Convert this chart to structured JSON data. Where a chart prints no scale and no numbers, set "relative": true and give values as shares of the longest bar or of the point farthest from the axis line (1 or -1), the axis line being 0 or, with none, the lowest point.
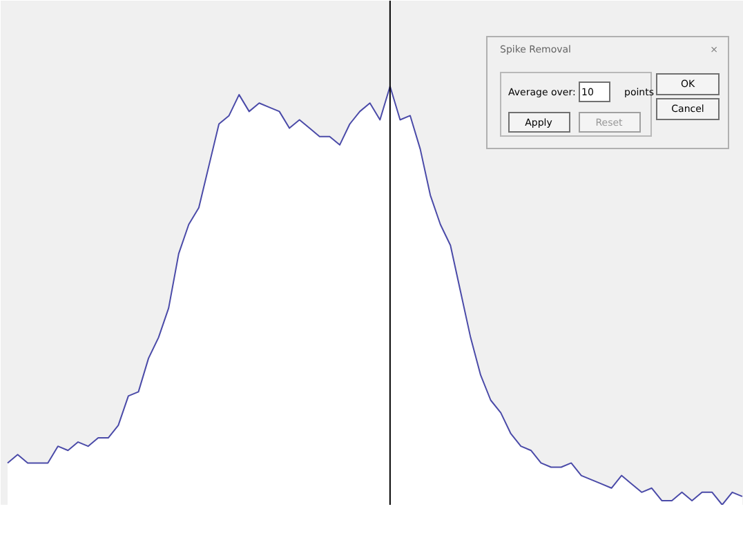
{
  "chart_data": {
    "type": "area",
    "relative": true,
    "categories": [
      null,
      null,
      null,
      null,
      null,
      null,
      null,
      null,
      null,
      null,
      null,
      null,
      null,
      null,
      null,
      null,
      null,
      null,
      null,
      null,
      null,
      null,
      null,
      null,
      null,
      null,
      null,
      null,
      null,
      null,
      null,
      null,
      null,
      null,
      null,
      null,
      null,
      null,
      null,
      null,
      null,
      null,
      null,
      null,
      null,
      null,
      null,
      null,
      null,
      null,
      null,
      null,
      null,
      null,
      null,
      null,
      null,
      null,
      null,
      null,
      null,
      null,
      null,
      null,
      null,
      null,
      null,
      null,
      null,
      null,
      null,
      null,
      null,
      null
    ],
    "series": [
      {
        "color": "#4a4aa8",
        "values": [
          0.1,
          0.12,
          0.1,
          0.1,
          0.1,
          0.14,
          0.13,
          0.15,
          0.14,
          0.16,
          0.16,
          0.19,
          0.26,
          0.27,
          0.35,
          0.4,
          0.47,
          0.6,
          0.67,
          0.71,
          0.81,
          0.91,
          0.93,
          0.98,
          0.94,
          0.96,
          0.95,
          0.94,
          0.9,
          0.92,
          0.9,
          0.88,
          0.88,
          0.86,
          0.91,
          0.94,
          0.96,
          0.92,
          1.0,
          0.92,
          0.93,
          0.85,
          0.74,
          0.67,
          0.62,
          0.51,
          0.4,
          0.31,
          0.25,
          0.22,
          0.17,
          0.14,
          0.13,
          0.1,
          0.09,
          0.09,
          0.1,
          0.07,
          0.06,
          0.05,
          0.04,
          0.07,
          0.05,
          0.03,
          0.04,
          0.01,
          0.01,
          0.03,
          0.01,
          0.03,
          0.03,
          0,
          0.03,
          0.02
        ]
      }
    ],
    "annotations": [
      "Spike Removal",
      "Average over:",
      "10",
      "points",
      "Apply",
      "Reset",
      "OK",
      "Cancel",
      "×"
    ],
    "grid": false,
    "tick_labels": false
  }
}
